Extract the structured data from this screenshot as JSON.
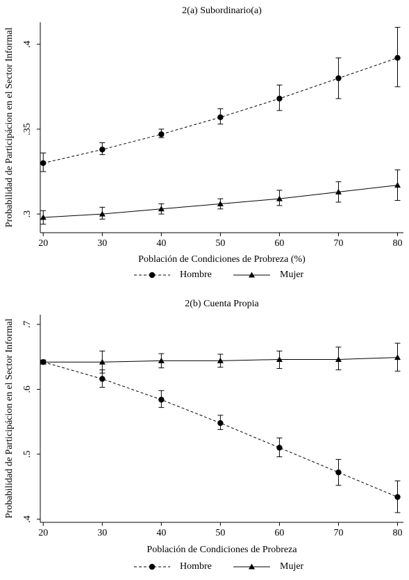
{
  "chart_data": [
    {
      "type": "line",
      "title": "2(a) Subordinario(a)",
      "xlabel": "Población de Condiciones de Probreza (%)",
      "ylabel": "Probabilidad de Participácion en el Sector Informal",
      "x": [
        20,
        30,
        40,
        50,
        60,
        70,
        80
      ],
      "x_ticks": [
        "20",
        "30",
        "40",
        "50",
        "60",
        "70",
        "80"
      ],
      "y_ticks": [
        ".3",
        ".35",
        ".4"
      ],
      "y_tick_values": [
        0.3,
        0.35,
        0.4
      ],
      "xlim": [
        19.5,
        81
      ],
      "ylim": [
        0.289,
        0.413
      ],
      "legend": "bottom",
      "series": [
        {
          "name": "Hombre",
          "style": "dashed",
          "marker": "circle",
          "values": [
            0.33,
            0.338,
            0.347,
            0.357,
            0.368,
            0.38,
            0.392
          ],
          "ci_low": [
            0.325,
            0.335,
            0.345,
            0.353,
            0.361,
            0.368,
            0.375
          ],
          "ci_high": [
            0.336,
            0.342,
            0.35,
            0.362,
            0.376,
            0.392,
            0.41
          ]
        },
        {
          "name": "Mujer",
          "style": "solid",
          "marker": "triangle",
          "values": [
            0.298,
            0.3,
            0.303,
            0.306,
            0.309,
            0.313,
            0.317
          ],
          "ci_low": [
            0.294,
            0.297,
            0.3,
            0.303,
            0.305,
            0.307,
            0.308
          ],
          "ci_high": [
            0.302,
            0.304,
            0.306,
            0.309,
            0.314,
            0.319,
            0.326
          ]
        }
      ]
    },
    {
      "type": "line",
      "title": "2(b) Cuenta Propia",
      "xlabel": "Población de Condiciones de Probreza",
      "ylabel": "Probabilidad de Participácion en el Sector Informal",
      "x": [
        20,
        30,
        40,
        50,
        60,
        70,
        80
      ],
      "x_ticks": [
        "20",
        "30",
        "40",
        "50",
        "60",
        "70",
        "80"
      ],
      "y_ticks": [
        ".4",
        ".5",
        ".6",
        ".7"
      ],
      "y_tick_values": [
        0.4,
        0.5,
        0.6,
        0.7
      ],
      "xlim": [
        19.5,
        81
      ],
      "ylim": [
        0.395,
        0.715
      ],
      "legend": "bottom",
      "series": [
        {
          "name": "Hombre",
          "style": "dashed",
          "marker": "circle",
          "values": [
            0.642,
            0.616,
            0.584,
            0.548,
            0.51,
            0.472,
            0.434
          ],
          "ci_low": [
            0.639,
            0.603,
            0.572,
            0.538,
            0.496,
            0.452,
            0.41
          ],
          "ci_high": [
            0.645,
            0.63,
            0.598,
            0.56,
            0.525,
            0.492,
            0.459
          ]
        },
        {
          "name": "Mujer",
          "style": "solid",
          "marker": "triangle",
          "values": [
            0.642,
            0.642,
            0.644,
            0.644,
            0.646,
            0.646,
            0.649
          ],
          "ci_low": [
            0.64,
            0.625,
            0.633,
            0.634,
            0.632,
            0.63,
            0.628
          ],
          "ci_high": [
            0.645,
            0.659,
            0.655,
            0.654,
            0.659,
            0.665,
            0.671
          ]
        }
      ]
    }
  ]
}
